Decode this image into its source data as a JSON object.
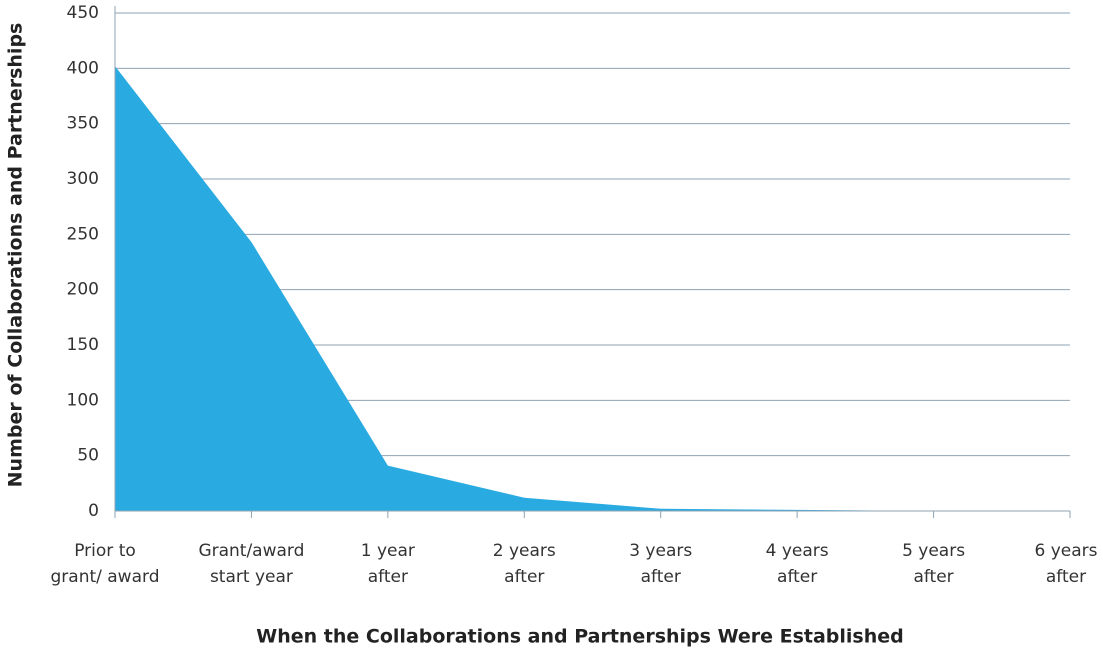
{
  "chart_data": {
    "type": "area",
    "x_label": "When the Collaborations and Partnerships Were Established",
    "y_label": "Number of Collaborations and Partnerships",
    "categories": [
      [
        "Prior to",
        "grant/ award"
      ],
      [
        "Grant/award",
        "start year"
      ],
      [
        "1 year",
        "after"
      ],
      [
        "2 years",
        "after"
      ],
      [
        "3 years",
        "after"
      ],
      [
        "4 years",
        "after"
      ],
      [
        "5 years",
        "after"
      ],
      [
        "6 years",
        "after"
      ]
    ],
    "values": [
      402,
      243,
      41,
      12,
      2,
      1,
      0,
      0
    ],
    "color": "#29abe2",
    "ylim": [
      0,
      450
    ],
    "yticks": [
      0,
      50,
      100,
      150,
      200,
      250,
      300,
      350,
      400,
      450
    ],
    "grid": true
  }
}
